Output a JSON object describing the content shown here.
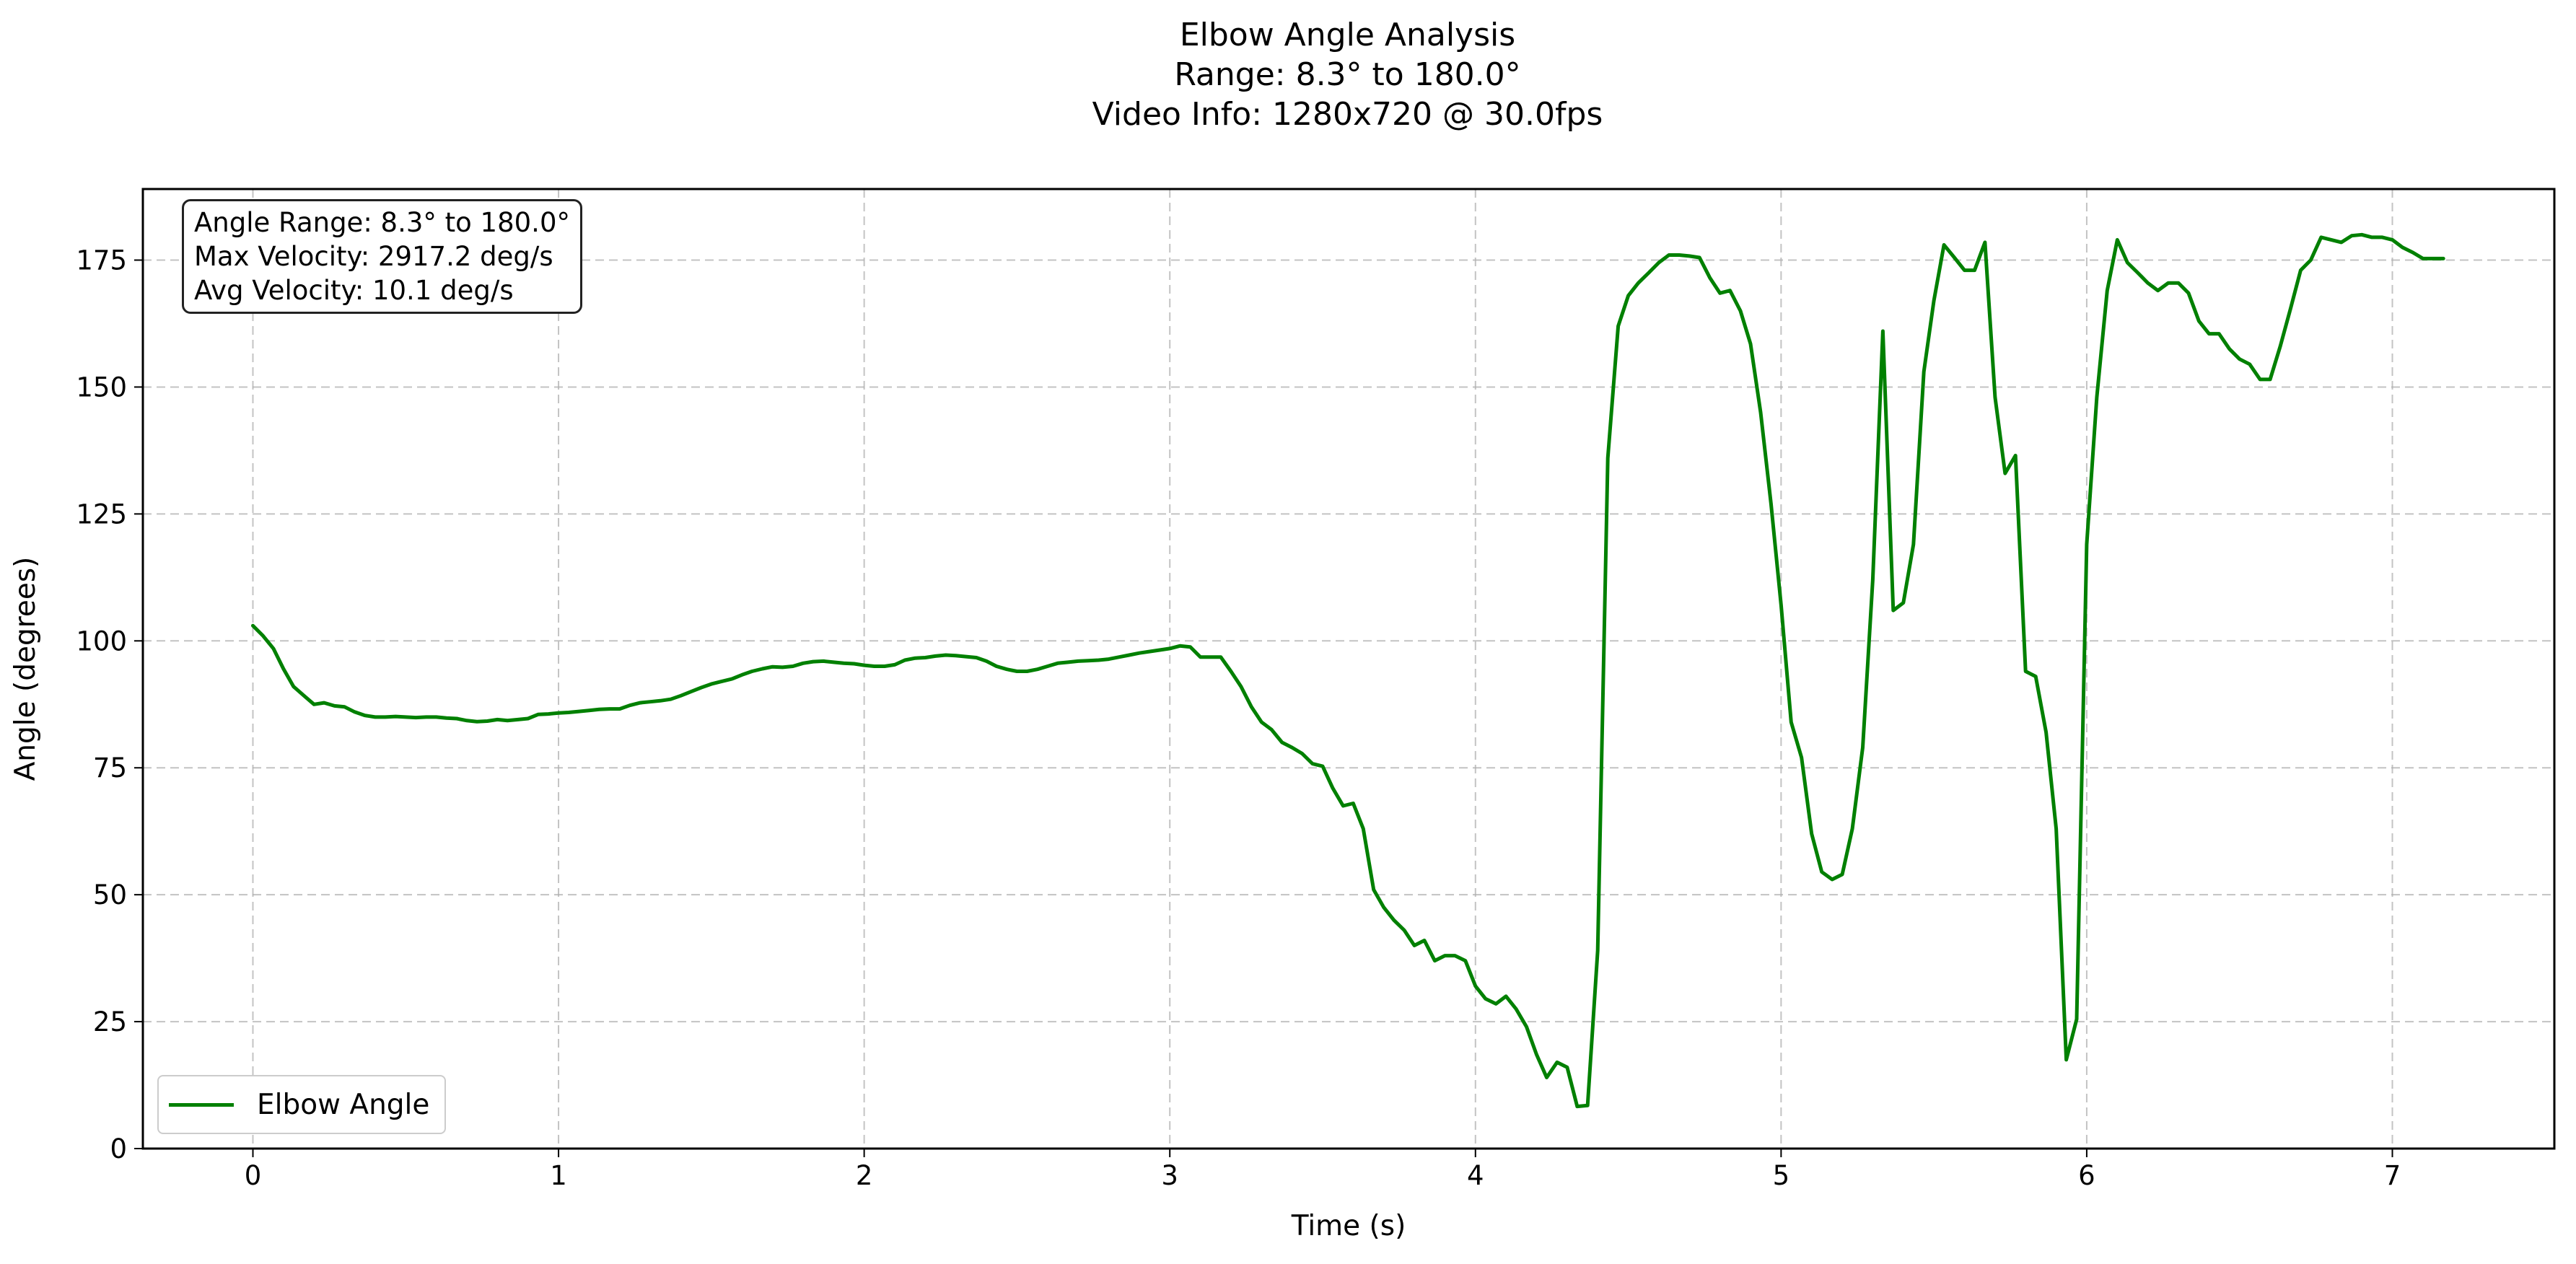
{
  "chart_data": {
    "type": "line",
    "title_lines": [
      "Elbow Angle Analysis",
      "Range: 8.3° to 180.0°",
      "Video Info: 1280x720 @ 30.0fps"
    ],
    "xlabel": "Time (s)",
    "ylabel": "Angle (degrees)",
    "xlim": [
      -0.36,
      7.53
    ],
    "ylim": [
      0,
      189
    ],
    "x_ticks": [
      0,
      1,
      2,
      3,
      4,
      5,
      6,
      7
    ],
    "y_ticks": [
      0,
      25,
      50,
      75,
      100,
      125,
      150,
      175
    ],
    "x_tick_labels": [
      "0",
      "1",
      "2",
      "3",
      "4",
      "5",
      "6",
      "7"
    ],
    "y_tick_labels": [
      "0",
      "25",
      "50",
      "75",
      "100",
      "125",
      "150",
      "175"
    ],
    "grid": true,
    "legend_position": "lower-left",
    "annotation_lines": [
      "Angle Range: 8.3° to 180.0°",
      "Max Velocity: 2917.2 deg/s",
      "Avg Velocity: 10.1 deg/s"
    ],
    "colors": {
      "line": "#008000",
      "grid": "#b0b0b0",
      "axes": "#000000"
    },
    "series": [
      {
        "name": "Elbow Angle",
        "x": [
          0,
          0.033,
          0.067,
          0.1,
          0.133,
          0.167,
          0.2,
          0.233,
          0.267,
          0.3,
          0.333,
          0.367,
          0.4,
          0.433,
          0.467,
          0.5,
          0.533,
          0.567,
          0.6,
          0.633,
          0.667,
          0.7,
          0.733,
          0.767,
          0.8,
          0.833,
          0.867,
          0.9,
          0.933,
          0.967,
          1.0,
          1.033,
          1.067,
          1.1,
          1.133,
          1.167,
          1.2,
          1.233,
          1.267,
          1.3,
          1.333,
          1.367,
          1.4,
          1.433,
          1.467,
          1.5,
          1.533,
          1.567,
          1.6,
          1.633,
          1.667,
          1.7,
          1.733,
          1.767,
          1.8,
          1.833,
          1.867,
          1.9,
          1.933,
          1.967,
          2.0,
          2.033,
          2.067,
          2.1,
          2.133,
          2.167,
          2.2,
          2.233,
          2.267,
          2.3,
          2.333,
          2.367,
          2.4,
          2.433,
          2.467,
          2.5,
          2.533,
          2.567,
          2.6,
          2.633,
          2.667,
          2.7,
          2.733,
          2.767,
          2.8,
          2.833,
          2.867,
          2.9,
          2.933,
          2.967,
          3.0,
          3.033,
          3.067,
          3.1,
          3.133,
          3.167,
          3.2,
          3.233,
          3.267,
          3.3,
          3.333,
          3.367,
          3.4,
          3.433,
          3.467,
          3.5,
          3.533,
          3.567,
          3.6,
          3.633,
          3.667,
          3.7,
          3.733,
          3.767,
          3.8,
          3.833,
          3.867,
          3.9,
          3.933,
          3.967,
          4.0,
          4.033,
          4.067,
          4.1,
          4.133,
          4.167,
          4.2,
          4.233,
          4.267,
          4.3,
          4.333,
          4.367,
          4.4,
          4.433,
          4.467,
          4.5,
          4.533,
          4.567,
          4.6,
          4.633,
          4.667,
          4.7,
          4.733,
          4.767,
          4.8,
          4.833,
          4.867,
          4.9,
          4.933,
          4.967,
          5.0,
          5.033,
          5.067,
          5.1,
          5.133,
          5.167,
          5.2,
          5.233,
          5.267,
          5.3,
          5.333,
          5.367,
          5.4,
          5.433,
          5.467,
          5.5,
          5.533,
          5.567,
          5.6,
          5.633,
          5.667,
          5.7,
          5.733,
          5.767,
          5.8,
          5.833,
          5.867,
          5.9,
          5.933,
          5.967,
          6.0,
          6.033,
          6.067,
          6.1,
          6.133,
          6.167,
          6.2,
          6.233,
          6.267,
          6.3,
          6.333,
          6.367,
          6.4,
          6.433,
          6.467,
          6.5,
          6.533,
          6.567,
          6.6,
          6.633,
          6.667,
          6.7,
          6.733,
          6.767,
          6.8,
          6.833,
          6.867,
          6.9,
          6.933,
          6.967,
          7.0,
          7.033,
          7.067,
          7.1,
          7.133,
          7.167
        ],
        "y": [
          103,
          101,
          98.5,
          94.5,
          91,
          89.2,
          87.5,
          87.8,
          87.2,
          87,
          86,
          85.3,
          85,
          85,
          85.1,
          85,
          84.9,
          85,
          85,
          84.8,
          84.7,
          84.3,
          84.1,
          84.2,
          84.5,
          84.3,
          84.5,
          84.7,
          85.5,
          85.6,
          85.8,
          85.9,
          86.1,
          86.3,
          86.5,
          86.6,
          86.6,
          87.3,
          87.8,
          88,
          88.2,
          88.5,
          89.2,
          90,
          90.8,
          91.5,
          92,
          92.5,
          93.3,
          94,
          94.5,
          94.9,
          94.8,
          95,
          95.6,
          95.9,
          96,
          95.8,
          95.6,
          95.5,
          95.2,
          95,
          95,
          95.3,
          96.2,
          96.6,
          96.7,
          97,
          97.2,
          97.1,
          96.9,
          96.7,
          96,
          95,
          94.4,
          94,
          94,
          94.4,
          95,
          95.6,
          95.8,
          96,
          96.1,
          96.2,
          96.4,
          96.8,
          97.2,
          97.6,
          97.9,
          98.2,
          98.5,
          99,
          98.8,
          96.8,
          96.8,
          96.8,
          94,
          91,
          87,
          84,
          82.5,
          80,
          79,
          77.8,
          75.8,
          75.3,
          71,
          67.5,
          68,
          63,
          51,
          47.5,
          45,
          43,
          40,
          41,
          37,
          38,
          38,
          37,
          32,
          29.5,
          28.5,
          30,
          27.5,
          24,
          18.5,
          14,
          17,
          16,
          8.3,
          8.5,
          39,
          136,
          162,
          168,
          170.5,
          172.5,
          174.5,
          176,
          176,
          175.8,
          175.5,
          171.5,
          168.5,
          169,
          165,
          158.5,
          145,
          127,
          107,
          84,
          77,
          62,
          54.5,
          53,
          54,
          63,
          79,
          112,
          161,
          106,
          107.5,
          119,
          153,
          167,
          178,
          175.5,
          173,
          173,
          178.5,
          148,
          133,
          136.5,
          94,
          93,
          82,
          63,
          17.5,
          25.5,
          119,
          148,
          169,
          179,
          174.5,
          172.5,
          170.5,
          169,
          170.5,
          170.5,
          168.5,
          163,
          160.5,
          160.5,
          157.5,
          155.5,
          154.5,
          151.5,
          151.5,
          158,
          165.5,
          173,
          175,
          179.5,
          179,
          178.5,
          179.8,
          180,
          179.5,
          179.5,
          179,
          177.5,
          176.5,
          175.3,
          175.3,
          175.3
        ]
      }
    ]
  }
}
